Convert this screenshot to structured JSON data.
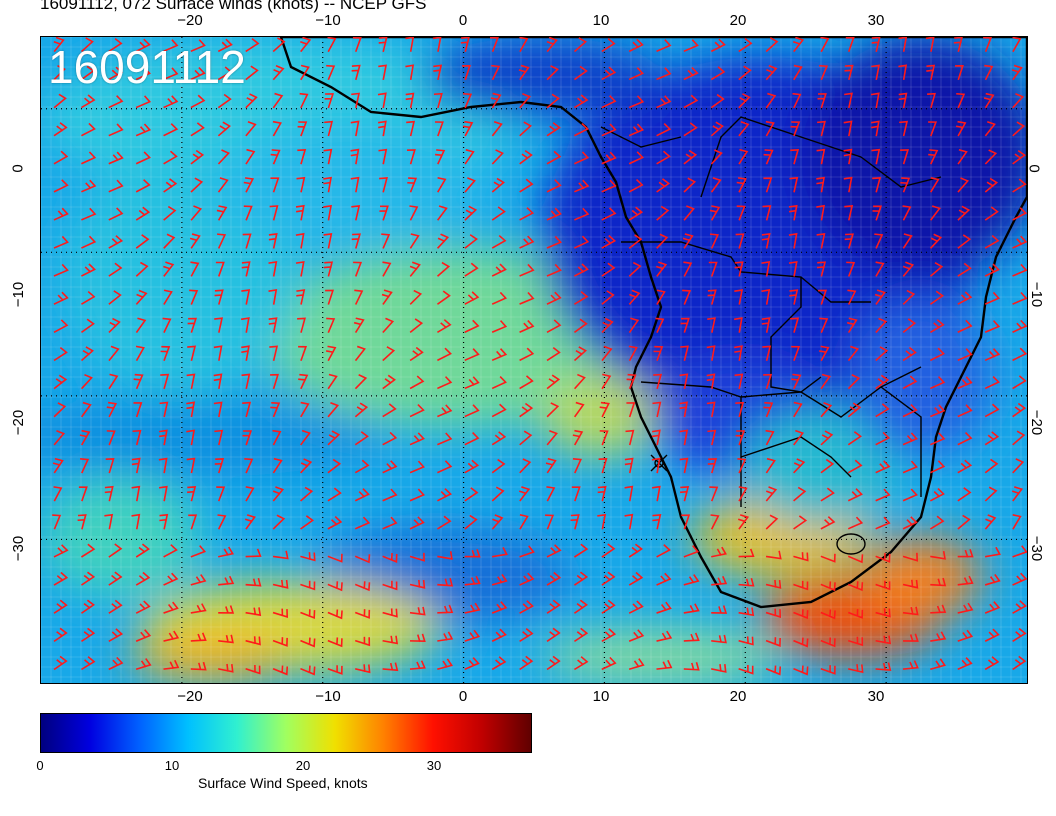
{
  "title": "16091112, 072 Surface winds (knots) -- NCEP GFS",
  "date_stamp": "16091112",
  "map": {
    "lon_range": [
      -30,
      40
    ],
    "lat_range": [
      -40,
      5
    ],
    "lon_ticks": [
      "−20",
      "−10",
      "0",
      "10",
      "20",
      "30"
    ],
    "lon_tick_values": [
      -20,
      -10,
      0,
      10,
      20,
      30
    ],
    "lat_ticks": [
      "0",
      "−10",
      "−20",
      "−30"
    ],
    "lat_tick_values": [
      0,
      -10,
      -20,
      -30
    ],
    "gridlines": true,
    "barb_color": "#ff1a1a",
    "coast_color": "#000000"
  },
  "colorbar": {
    "label": "Surface Wind Speed, knots",
    "ticks": [
      "0",
      "10",
      "20",
      "30"
    ],
    "tick_values": [
      0,
      10,
      20,
      30
    ],
    "range": [
      0,
      37
    ],
    "colormap": [
      "#00007f",
      "#0000e0",
      "#0060ff",
      "#00c0ff",
      "#30f0d0",
      "#a0ff60",
      "#f0e000",
      "#ff8000",
      "#ff1000",
      "#c00000",
      "#600000"
    ]
  }
}
